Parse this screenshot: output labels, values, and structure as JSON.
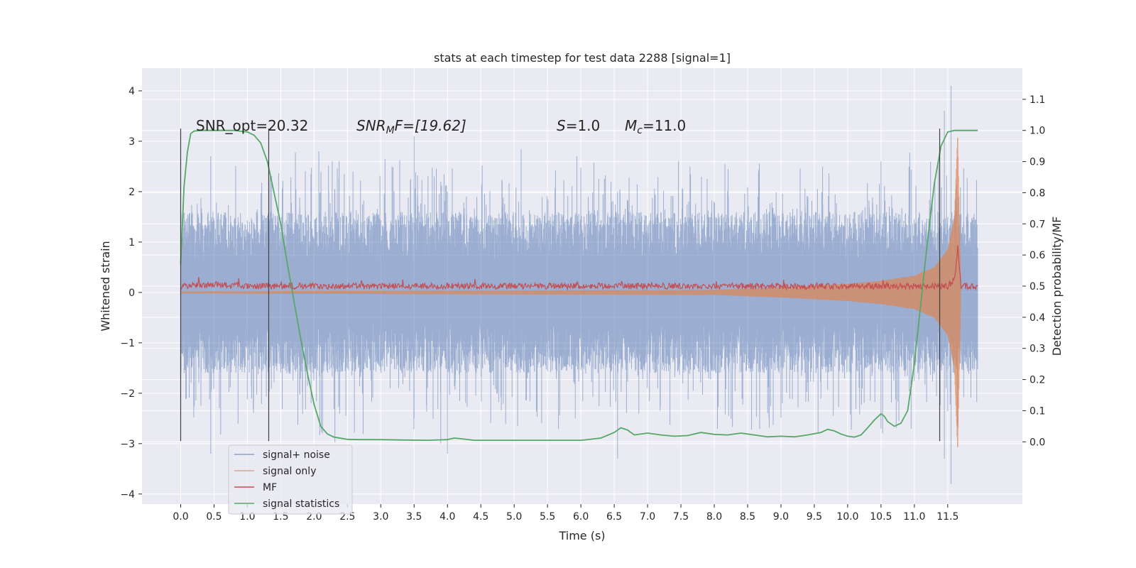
{
  "chart_data": {
    "type": "line",
    "title": "stats at each timestep for test data 2288 [signal=1]",
    "xlabel": "Time (s)",
    "ylabel_left": "Whitened strain",
    "ylabel_right": "Detection probability/MF",
    "xlim": [
      -0.58,
      12.62
    ],
    "ylim_left": [
      -4.2,
      4.45
    ],
    "ylim_right": [
      -0.2,
      1.2
    ],
    "x_ticks": [
      0.0,
      0.5,
      1.0,
      1.5,
      2.0,
      2.5,
      3.0,
      3.5,
      4.0,
      4.5,
      5.0,
      5.5,
      6.0,
      6.5,
      7.0,
      7.5,
      8.0,
      8.5,
      9.0,
      9.5,
      10.0,
      10.5,
      11.0,
      11.5
    ],
    "x_tick_labels": [
      "0.0",
      "0.5",
      "1.0",
      "1.5",
      "2.0",
      "2.5",
      "3.0",
      "3.5",
      "4.0",
      "4.5",
      "5.0",
      "5.5",
      "6.0",
      "6.5",
      "7.0",
      "7.5",
      "8.0",
      "8.5",
      "9.0",
      "9.5",
      "10.0",
      "10.5",
      "11.0",
      "11.5"
    ],
    "y_left_ticks": [
      4,
      3,
      2,
      1,
      0,
      -1,
      -2,
      -3,
      -4
    ],
    "y_left_tick_labels": [
      "4",
      "3",
      "2",
      "1",
      "0",
      "−1",
      "−2",
      "−3",
      "−4"
    ],
    "y_right_ticks": [
      1.1,
      1.0,
      0.9,
      0.8,
      0.7,
      0.6,
      0.5,
      0.4,
      0.3,
      0.2,
      0.1,
      0.0
    ],
    "y_right_tick_labels": [
      "1.1",
      "1.0",
      "0.9",
      "0.8",
      "0.7",
      "0.6",
      "0.5",
      "0.4",
      "0.3",
      "0.2",
      "0.1",
      "0.0"
    ],
    "grid": true,
    "legend_position": "bottom-left",
    "vertical_markers": [
      0.0,
      1.32,
      11.38
    ],
    "annotations": {
      "snr_opt": "SNR_opt=20.32",
      "snr_mf_var": "SNR",
      "snr_mf_sub": "M",
      "snr_mf_rest": "F=[19.62]",
      "s_var": "S",
      "s_rest": "=1.0",
      "mc_var": "M",
      "mc_sub": "c",
      "mc_rest": "=11.0"
    },
    "colors": {
      "signal_noise": "#4c72b0",
      "signal_only": "#dd8452",
      "mf": "#c44e52",
      "signal_statistics": "#55a868",
      "plot_bg": "#eaeaf2",
      "grid": "#ffffff",
      "marker": "#404040"
    },
    "series": [
      {
        "name": "signal+ noise",
        "axis": "left",
        "kind": "noise_band",
        "x_range": [
          0.0,
          11.95
        ],
        "typical_range": [
          -1.5,
          1.5
        ],
        "spike_range": [
          -3.8,
          4.1
        ]
      },
      {
        "name": "signal only",
        "axis": "left",
        "kind": "chirp_envelope",
        "x": [
          0.0,
          8.0,
          9.0,
          10.0,
          10.5,
          11.0,
          11.3,
          11.5,
          11.6,
          11.65,
          11.7
        ],
        "envelope": [
          0.02,
          0.05,
          0.1,
          0.17,
          0.23,
          0.33,
          0.5,
          0.85,
          1.5,
          3.2,
          0.0
        ]
      },
      {
        "name": "MF",
        "axis": "right",
        "kind": "line",
        "x": [
          0.0,
          0.5,
          1.0,
          1.5,
          2.0,
          3.0,
          4.0,
          5.0,
          6.0,
          7.0,
          8.0,
          9.0,
          10.0,
          11.0,
          11.5,
          11.6,
          11.65,
          11.7,
          11.95
        ],
        "y": [
          0.5,
          0.505,
          0.5,
          0.5,
          0.5,
          0.5,
          0.5,
          0.5,
          0.5,
          0.5,
          0.5,
          0.5,
          0.5,
          0.5,
          0.5,
          0.52,
          0.62,
          0.5,
          0.5
        ]
      },
      {
        "name": "signal statistics",
        "axis": "right",
        "kind": "line",
        "x": [
          0.0,
          0.05,
          0.1,
          0.15,
          0.2,
          0.3,
          0.5,
          0.8,
          1.0,
          1.1,
          1.2,
          1.3,
          1.4,
          1.5,
          1.6,
          1.7,
          1.8,
          1.9,
          2.0,
          2.1,
          2.2,
          2.3,
          2.5,
          2.7,
          3.0,
          3.3,
          3.7,
          4.0,
          4.1,
          4.2,
          4.4,
          4.8,
          5.2,
          5.6,
          6.0,
          6.3,
          6.5,
          6.6,
          6.7,
          6.8,
          7.0,
          7.2,
          7.4,
          7.6,
          7.8,
          8.0,
          8.2,
          8.4,
          8.6,
          8.8,
          9.0,
          9.2,
          9.4,
          9.6,
          9.7,
          9.8,
          9.9,
          10.0,
          10.1,
          10.2,
          10.3,
          10.4,
          10.5,
          10.55,
          10.6,
          10.7,
          10.8,
          10.9,
          11.0,
          11.1,
          11.2,
          11.3,
          11.4,
          11.5,
          11.6,
          11.8,
          11.95
        ],
        "y": [
          0.57,
          0.82,
          0.93,
          0.99,
          0.998,
          1.0,
          1.0,
          1.0,
          0.995,
          0.985,
          0.96,
          0.9,
          0.8,
          0.7,
          0.57,
          0.45,
          0.33,
          0.22,
          0.12,
          0.05,
          0.025,
          0.015,
          0.008,
          0.007,
          0.007,
          0.006,
          0.005,
          0.007,
          0.012,
          0.01,
          0.005,
          0.005,
          0.005,
          0.005,
          0.005,
          0.012,
          0.03,
          0.045,
          0.038,
          0.022,
          0.028,
          0.022,
          0.018,
          0.02,
          0.03,
          0.024,
          0.022,
          0.028,
          0.022,
          0.016,
          0.018,
          0.016,
          0.022,
          0.03,
          0.04,
          0.035,
          0.025,
          0.018,
          0.015,
          0.022,
          0.045,
          0.07,
          0.09,
          0.082,
          0.065,
          0.05,
          0.06,
          0.1,
          0.25,
          0.45,
          0.65,
          0.83,
          0.95,
          0.995,
          1.0,
          1.0,
          1.0
        ]
      }
    ]
  }
}
